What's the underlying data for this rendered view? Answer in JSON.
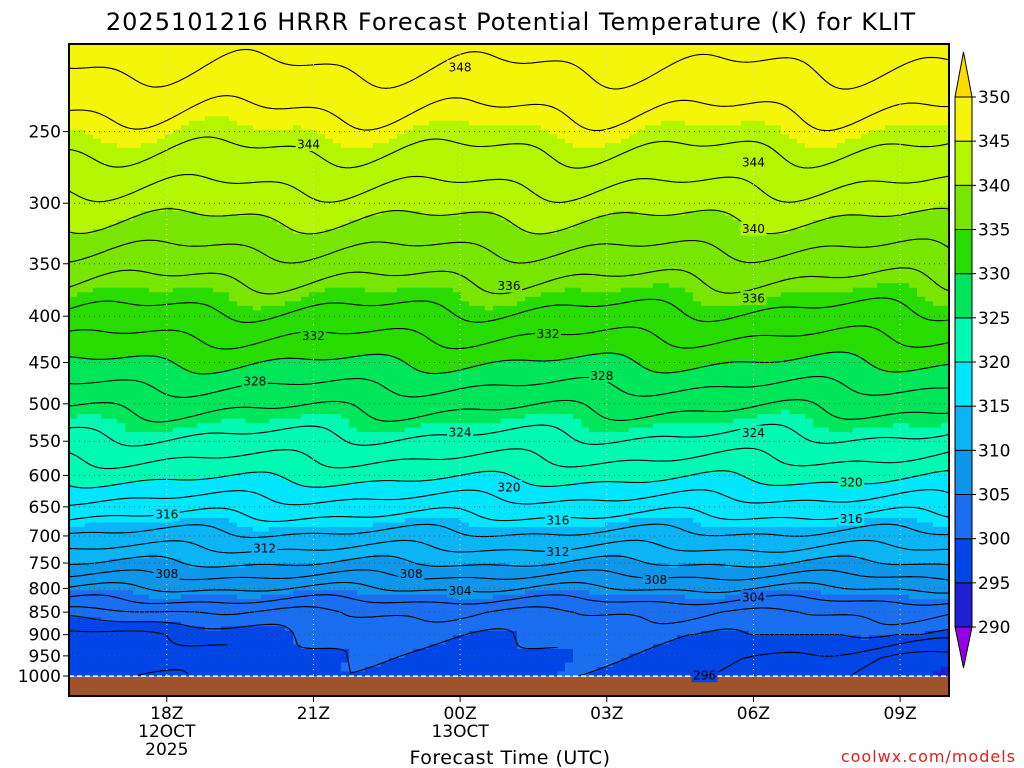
{
  "chart_data": {
    "type": "heatmap",
    "title": "2025101216 HRRR Forecast Potential Temperature (K) for KLIT",
    "xlabel": "Forecast Time (UTC)",
    "ylabel": "",
    "y_axis_scale": "log-pressure",
    "y_ticks": [
      250,
      300,
      350,
      400,
      450,
      500,
      550,
      600,
      650,
      700,
      750,
      800,
      850,
      900,
      950,
      1000
    ],
    "ylim": [
      1000,
      200
    ],
    "x_ticks": [
      {
        "hour": 18,
        "label": "18Z",
        "sublabels": [
          "12OCT",
          "2025"
        ]
      },
      {
        "hour": 21,
        "label": "21Z",
        "sublabels": []
      },
      {
        "hour": 24,
        "label": "00Z",
        "sublabels": [
          "13OCT"
        ]
      },
      {
        "hour": 27,
        "label": "03Z",
        "sublabels": []
      },
      {
        "hour": 30,
        "label": "06Z",
        "sublabels": []
      },
      {
        "hour": 33,
        "label": "09Z",
        "sublabels": []
      }
    ],
    "xlim_hours": [
      16,
      34
    ],
    "grid": "dotted",
    "contour_labels": [
      {
        "value": "348",
        "hour": 24.0,
        "p": 212
      },
      {
        "value": "344",
        "hour": 20.9,
        "p": 258
      },
      {
        "value": "344",
        "hour": 30.0,
        "p": 270
      },
      {
        "value": "340",
        "hour": 30.0,
        "p": 320
      },
      {
        "value": "336",
        "hour": 25.0,
        "p": 370
      },
      {
        "value": "336",
        "hour": 30.0,
        "p": 382
      },
      {
        "value": "332",
        "hour": 21.0,
        "p": 420
      },
      {
        "value": "332",
        "hour": 25.8,
        "p": 418
      },
      {
        "value": "328",
        "hour": 19.8,
        "p": 472
      },
      {
        "value": "328",
        "hour": 26.9,
        "p": 465
      },
      {
        "value": "324",
        "hour": 24.0,
        "p": 537
      },
      {
        "value": "324",
        "hour": 30.0,
        "p": 538
      },
      {
        "value": "320",
        "hour": 25.0,
        "p": 618
      },
      {
        "value": "320",
        "hour": 32.0,
        "p": 610
      },
      {
        "value": "316",
        "hour": 18.0,
        "p": 662
      },
      {
        "value": "316",
        "hour": 26.0,
        "p": 672
      },
      {
        "value": "316",
        "hour": 32.0,
        "p": 670
      },
      {
        "value": "312",
        "hour": 20.0,
        "p": 722
      },
      {
        "value": "312",
        "hour": 26.0,
        "p": 728
      },
      {
        "value": "308",
        "hour": 18.0,
        "p": 770
      },
      {
        "value": "308",
        "hour": 23.0,
        "p": 770
      },
      {
        "value": "308",
        "hour": 28.0,
        "p": 782
      },
      {
        "value": "304",
        "hour": 24.0,
        "p": 804
      },
      {
        "value": "304",
        "hour": 30.0,
        "p": 818
      },
      {
        "value": "296",
        "hour": 29.0,
        "p": 998
      }
    ],
    "colorbar": {
      "levels": [
        290,
        295,
        300,
        305,
        310,
        315,
        320,
        325,
        330,
        335,
        340,
        345,
        350
      ],
      "colors": [
        "#9600e6",
        "#1e1ed2",
        "#0046e6",
        "#1a6ef0",
        "#0e96eb",
        "#0ab4f5",
        "#00e6ff",
        "#00fab4",
        "#00e65a",
        "#28dc00",
        "#78e600",
        "#b4f500",
        "#f5f50a",
        "#ffdc00"
      ]
    },
    "ground_color": "#a0522d"
  },
  "credit": "coolwx.com/models",
  "credit_color": "#e0201e"
}
